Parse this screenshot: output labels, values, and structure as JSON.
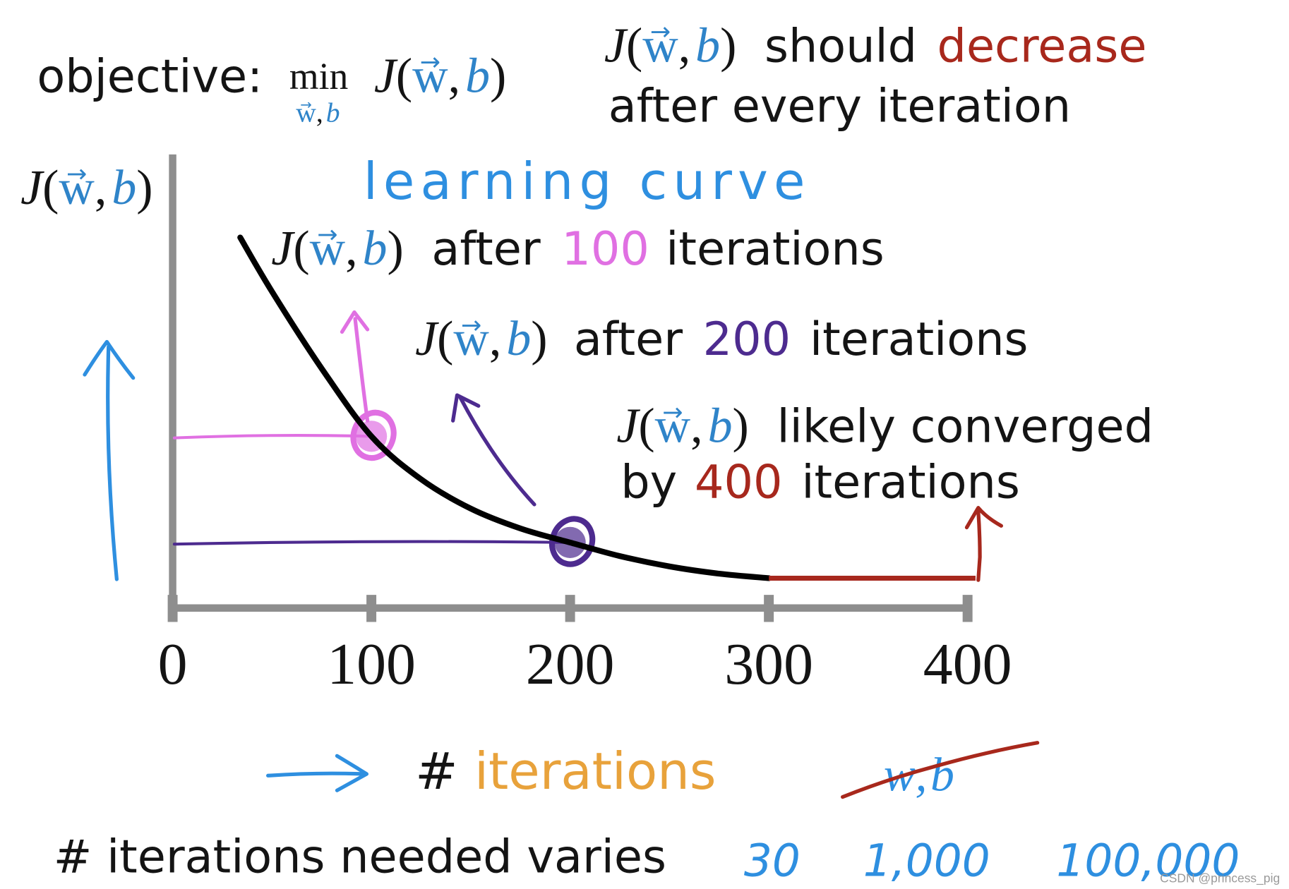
{
  "slide": {
    "objective": {
      "label": "objective:",
      "operator": "min"
    },
    "math": {
      "J": "J",
      "lp": "(",
      "w": "w",
      "arrow": "→",
      "comma": ",",
      "b": "b",
      "rp": ")"
    },
    "top_note": {
      "should": "should",
      "decrease": "decrease",
      "line2": "after every iteration"
    },
    "handwritten_title": "learning curve",
    "annotations": {
      "at_100": {
        "prefix": "after",
        "number": "100",
        "suffix": "iterations"
      },
      "at_200": {
        "prefix": "after",
        "number": "200",
        "suffix": "iterations"
      },
      "at_400": {
        "line1": "likely converged",
        "prefix": "by",
        "number": "400",
        "suffix": "iterations"
      }
    },
    "crossed_out": "w,b",
    "bottom_note": "# iterations needed varies",
    "example_counts": [
      "30",
      "1,000",
      "100,000"
    ],
    "watermark": "CSDN @princess_pig"
  },
  "colors": {
    "math_blue": "#2f84c9",
    "decrease_red": "#a8281c",
    "pink": "#e070e2",
    "purple": "#4d2b8f",
    "converged_red": "#a7281d",
    "orange": "#e8a23b",
    "ink_blue": "#2e8fe0",
    "axis_gray": "#8e8e8e"
  },
  "chart_data": {
    "type": "line",
    "xlabel": {
      "hash": "#",
      "word": "iterations"
    },
    "ylabel": {
      "J": "J",
      "lp": "(",
      "w": "w",
      "arrow": "→",
      "comma": ",",
      "b": "b",
      "rp": ")"
    },
    "xlim": [
      0,
      400
    ],
    "ylim": [
      0,
      100
    ],
    "x_ticks": [
      0,
      100,
      200,
      300,
      400
    ],
    "x_tick_labels": [
      "0",
      "100",
      "200",
      "300",
      "400"
    ],
    "y_ticks": [],
    "grid": false,
    "legend": "none",
    "series": [
      {
        "color": "#000000",
        "x": [
          34,
          50,
          75,
          100,
          125,
          150,
          175,
          200,
          225,
          250,
          275,
          300
        ],
        "y": [
          82,
          70,
          53,
          38,
          28.5,
          22,
          17.6,
          14.5,
          11.5,
          9.2,
          7.6,
          6.6
        ]
      },
      {
        "color": "#a7281d",
        "x": [
          300,
          404
        ],
        "y": [
          6.6,
          6.6
        ]
      }
    ],
    "highlights": [
      {
        "x": 100,
        "y": 38,
        "color": "#e070e2"
      },
      {
        "x": 200,
        "y": 14.5,
        "color": "#4d2b8f"
      }
    ]
  }
}
